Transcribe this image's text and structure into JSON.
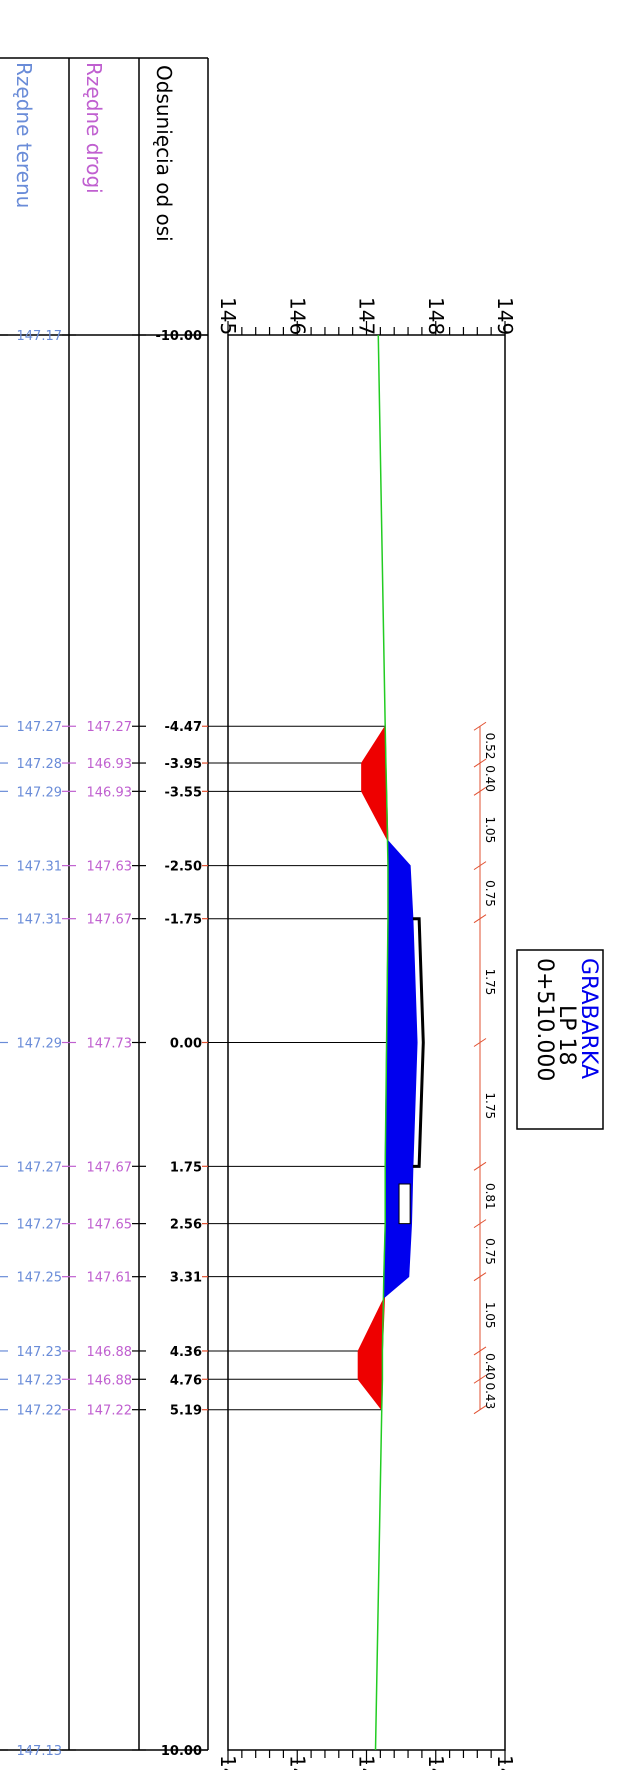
{
  "header": {
    "offsets_label": "Odsunięcia od osi",
    "road_label": "Rzędne drogi",
    "terrain_label": "Rzędne terenu"
  },
  "title_box": {
    "line1": "GRABARKA",
    "line2": "LP 18",
    "line3": "0+510.000"
  },
  "colors": {
    "terrain": "#6a8cd8",
    "road": "#c060d0",
    "ground_line": "#22cc22",
    "fill_blue": "#0000ee",
    "fill_red": "#ee0000",
    "dim_red": "#e05030",
    "title_blue": "#0000ee"
  },
  "scale": {
    "elev_min": 145,
    "elev_max": 149,
    "ticks": [
      "145",
      "146",
      "147",
      "148",
      "149"
    ]
  },
  "ends": {
    "top": {
      "offset": "-10.00",
      "terrain": "147.17"
    },
    "bottom": {
      "offset": "10.00",
      "terrain": "147.13"
    }
  },
  "rows": [
    {
      "offset": "-4.47",
      "road": "147.27",
      "terrain": "147.27"
    },
    {
      "offset": "-3.95",
      "road": "146.93",
      "terrain": "147.28"
    },
    {
      "offset": "-3.55",
      "road": "146.93",
      "terrain": "147.29"
    },
    {
      "offset": "-2.50",
      "road": "147.63",
      "terrain": "147.31"
    },
    {
      "offset": "-1.75",
      "road": "147.67",
      "terrain": "147.31"
    },
    {
      "offset": "0.00",
      "road": "147.73",
      "terrain": "147.29"
    },
    {
      "offset": "1.75",
      "road": "147.67",
      "terrain": "147.27"
    },
    {
      "offset": "2.56",
      "road": "147.65",
      "terrain": "147.27"
    },
    {
      "offset": "3.31",
      "road": "147.61",
      "terrain": "147.25"
    },
    {
      "offset": "4.36",
      "road": "146.88",
      "terrain": "147.23"
    },
    {
      "offset": "4.76",
      "road": "146.88",
      "terrain": "147.23"
    },
    {
      "offset": "5.19",
      "road": "147.22",
      "terrain": "147.22"
    }
  ],
  "dimensions": [
    "0.52",
    "0.40",
    "1.05",
    "0.75",
    "1.75",
    "1.75",
    "0.81",
    "0.75",
    "1.05",
    "0.40",
    "0.43"
  ]
}
